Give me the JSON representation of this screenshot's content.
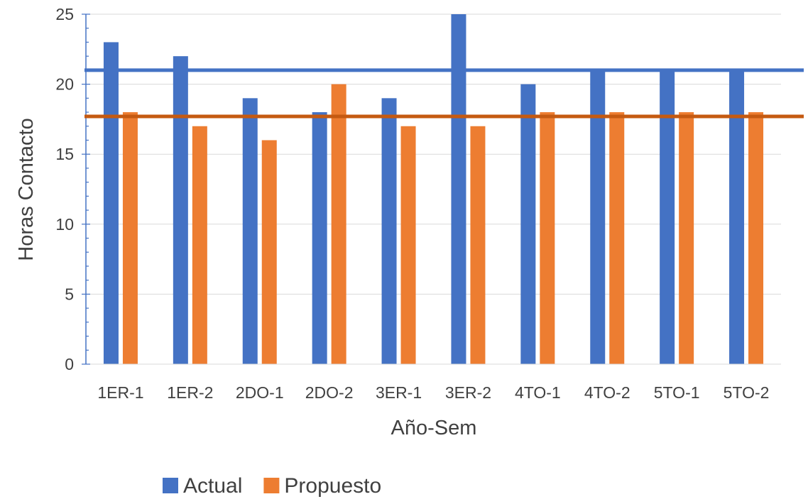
{
  "chart_data": {
    "type": "bar",
    "title": "",
    "xlabel": "Año-Sem",
    "ylabel": "Horas Contacto",
    "ylim": [
      0,
      25
    ],
    "yticks": [
      0,
      5,
      10,
      15,
      20,
      25
    ],
    "grid": true,
    "legend_position": "bottom",
    "categories": [
      "1ER-1",
      "1ER-2",
      "2DO-1",
      "2DO-2",
      "3ER-1",
      "3ER-2",
      "4TO-1",
      "4TO-2",
      "5TO-1",
      "5TO-2"
    ],
    "series": [
      {
        "name": "Actual",
        "color": "#4472C4",
        "values": [
          23,
          22,
          19,
          18,
          19,
          25,
          20,
          21,
          21,
          21
        ]
      },
      {
        "name": "Propuesto",
        "color": "#ED7D31",
        "values": [
          18,
          17,
          16,
          20,
          17,
          17,
          18,
          18,
          18,
          18
        ]
      }
    ],
    "reference_lines": [
      {
        "value": 21,
        "color": "#4472C4"
      },
      {
        "value": 17.7,
        "color": "#C55A11"
      }
    ]
  }
}
